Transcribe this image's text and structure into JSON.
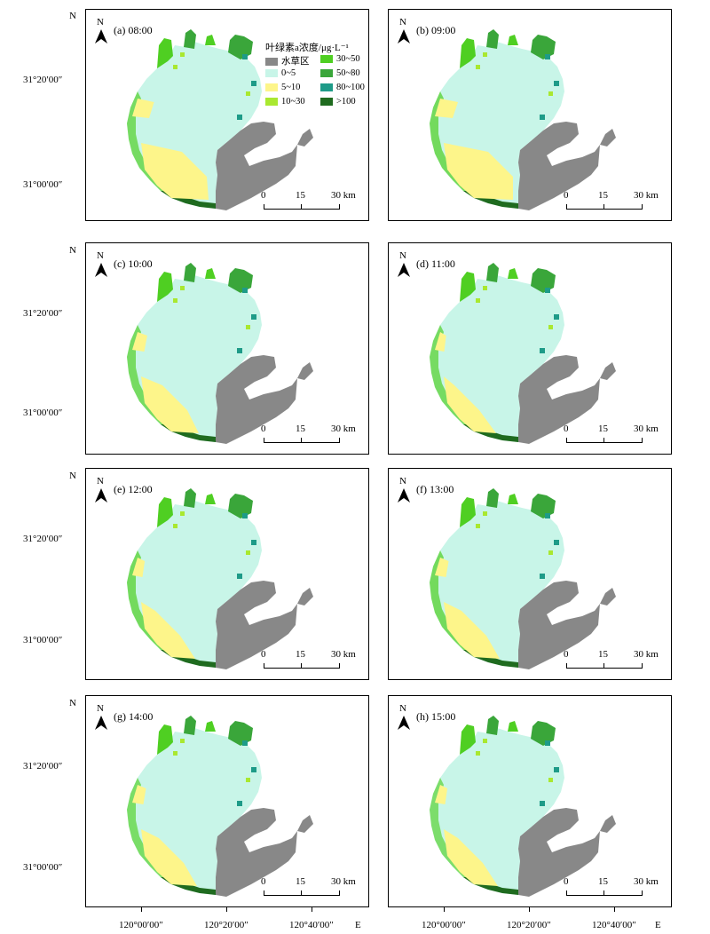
{
  "legend": {
    "title": "叶绿素a浓度/μg·L⁻¹",
    "items": [
      {
        "label": "水草区",
        "color": "#888888"
      },
      {
        "label": "30~50",
        "color": "#4fcf22"
      },
      {
        "label": "0~5",
        "color": "#c8f5e8"
      },
      {
        "label": "50~80",
        "color": "#3aa63a"
      },
      {
        "label": "5~10",
        "color": "#fdf58a"
      },
      {
        "label": "80~100",
        "color": "#1e9b88"
      },
      {
        "label": "10~30",
        "color": "#a9e830"
      },
      {
        "label": ">100",
        "color": "#1f6b1f"
      }
    ]
  },
  "north_label": "N",
  "scale": {
    "zero": "0",
    "mid": "15",
    "end": "30 km"
  },
  "axes": {
    "y_north": "N",
    "y_labels": [
      "31°20′00″",
      "31°00′00″"
    ],
    "x_labels": [
      "120°00′00″",
      "120°20′00″",
      "120°40′00″"
    ],
    "x_east": "E"
  },
  "panels": [
    {
      "label": "(a) 08:00",
      "yellow": 0.9,
      "green": 0.55
    },
    {
      "label": "(b) 09:00",
      "yellow": 1.0,
      "green": 0.6
    },
    {
      "label": "(c) 10:00",
      "yellow": 0.35,
      "green": 0.55
    },
    {
      "label": "(d) 11:00",
      "yellow": 0.05,
      "green": 0.55
    },
    {
      "label": "(e) 12:00",
      "yellow": 0.15,
      "green": 0.6
    },
    {
      "label": "(f) 13:00",
      "yellow": 0.25,
      "green": 0.6
    },
    {
      "label": "(g) 14:00",
      "yellow": 0.25,
      "green": 0.5
    },
    {
      "label": "(h) 15:00",
      "yellow": 0.15,
      "green": 0.45
    }
  ]
}
